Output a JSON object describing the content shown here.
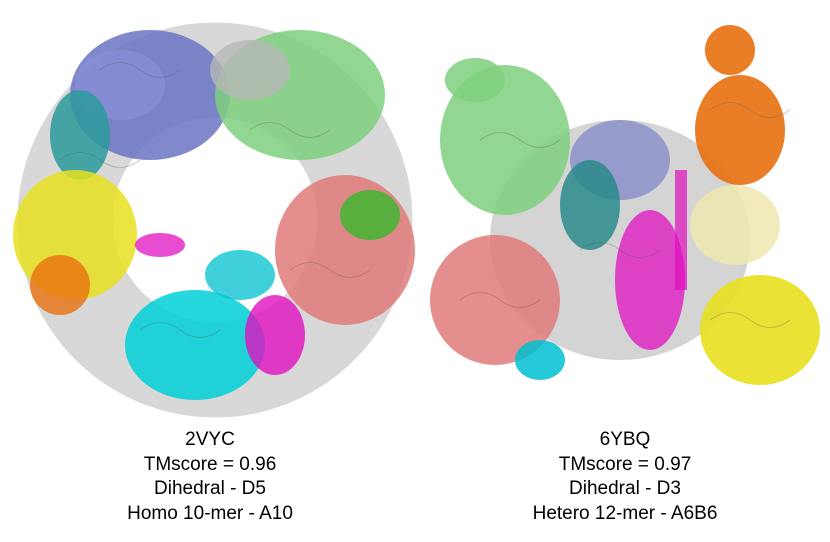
{
  "panels": [
    {
      "pdb_id": "2VYC",
      "tmscore": "TMscore = 0.96",
      "symmetry": "Dihedral - D5",
      "stoichiometry": "Homo 10-mer - A10",
      "chain_colors": [
        "#6b74c4",
        "#2a9a9a",
        "#7ed07e",
        "#e07a7a",
        "#e8e020",
        "#00d0d8",
        "#e010c0",
        "#e87010",
        "#b8b8b8"
      ]
    },
    {
      "pdb_id": "6YBQ",
      "tmscore": "TMscore = 0.97",
      "symmetry": "Dihedral - D3",
      "stoichiometry": "Hetero 12-mer - A6B6",
      "chain_colors": [
        "#7ed07e",
        "#e07a7a",
        "#2a8a8a",
        "#8a90c8",
        "#e010c0",
        "#e87010",
        "#e8e020",
        "#00c0d0",
        "#b8b8b8"
      ]
    }
  ]
}
